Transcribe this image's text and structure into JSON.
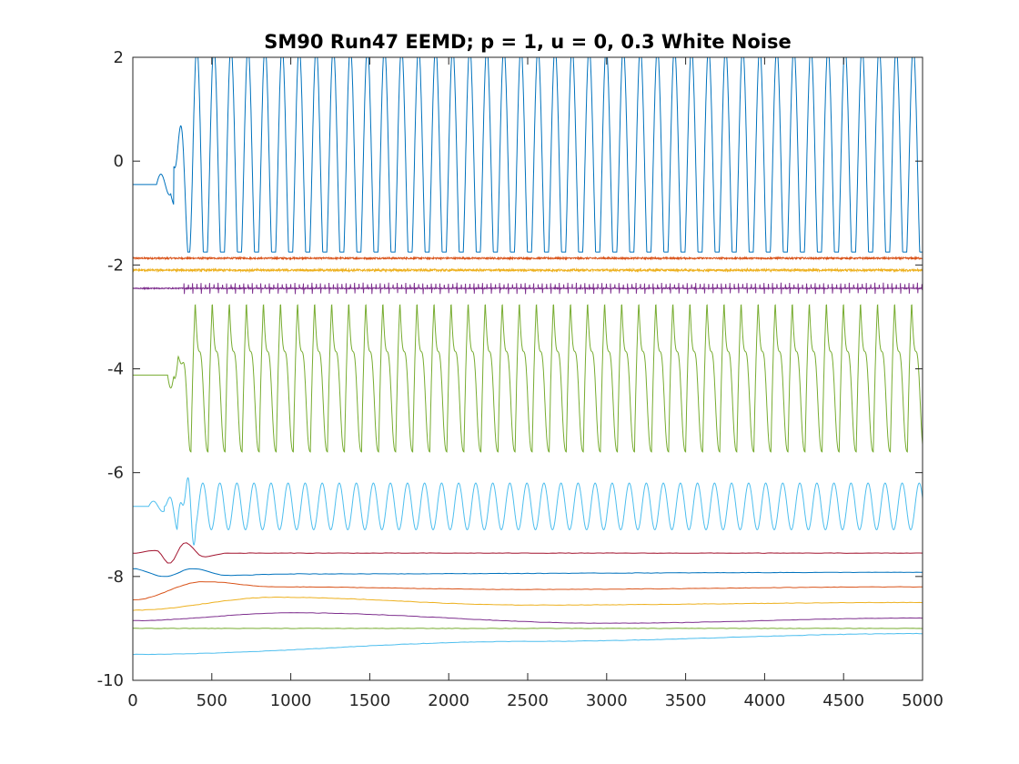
{
  "chart_data": {
    "type": "line",
    "title": "SM90 Run47 EEMD; p = 1, u = 0, 0.3 White Noise",
    "xlabel": "",
    "ylabel": "",
    "xlim": [
      0,
      5000
    ],
    "ylim": [
      -10,
      2
    ],
    "x_ticks": [
      0,
      500,
      1000,
      1500,
      2000,
      2500,
      3000,
      3500,
      4000,
      4500,
      5000
    ],
    "y_ticks": [
      -10,
      -8,
      -6,
      -4,
      -2,
      0,
      2
    ],
    "grid": false,
    "legend": "none",
    "series": [
      {
        "kind": "clipped_oscillation",
        "color": "#0072BD",
        "offset": -0.45,
        "pre_amp": 0.2,
        "amp": 2.3,
        "period": 108,
        "onset": 260,
        "clip_top": 2.0,
        "clip_bottom": -1.75
      },
      {
        "kind": "noise",
        "color": "#D95319",
        "offset": -1.87,
        "amp": 0.03
      },
      {
        "kind": "noise",
        "color": "#EDB120",
        "offset": -2.1,
        "amp": 0.04
      },
      {
        "kind": "spiky",
        "color": "#7E2F8E",
        "offset": -2.45,
        "amp": 0.1,
        "period": 54
      },
      {
        "kind": "sawtooth_oscillation",
        "color": "#77AC30",
        "offset": -4.12,
        "amp": 1.45,
        "period": 108,
        "onset": 260
      },
      {
        "kind": "oscillation",
        "color": "#4DBEEE",
        "offset": -6.65,
        "amp": 0.45,
        "period": 108,
        "onset": 200
      },
      {
        "kind": "slow",
        "color": "#A2142F",
        "offset": -7.55,
        "points": [
          [
            0,
            -7.55
          ],
          [
            150,
            -7.5
          ],
          [
            230,
            -7.75
          ],
          [
            330,
            -7.35
          ],
          [
            450,
            -7.62
          ],
          [
            600,
            -7.55
          ],
          [
            5000,
            -7.55
          ]
        ]
      },
      {
        "kind": "slow",
        "color": "#0072BD",
        "offset": -7.95,
        "points": [
          [
            0,
            -7.85
          ],
          [
            200,
            -8.0
          ],
          [
            380,
            -7.85
          ],
          [
            600,
            -7.98
          ],
          [
            1000,
            -7.95
          ],
          [
            5000,
            -7.92
          ]
        ]
      },
      {
        "kind": "slow",
        "color": "#D95319",
        "offset": -8.25,
        "points": [
          [
            0,
            -8.45
          ],
          [
            450,
            -8.1
          ],
          [
            900,
            -8.2
          ],
          [
            2500,
            -8.25
          ],
          [
            5000,
            -8.2
          ]
        ]
      },
      {
        "kind": "slow",
        "color": "#EDB120",
        "offset": -8.5,
        "points": [
          [
            0,
            -8.65
          ],
          [
            900,
            -8.4
          ],
          [
            2500,
            -8.55
          ],
          [
            5000,
            -8.5
          ]
        ]
      },
      {
        "kind": "slow",
        "color": "#7E2F8E",
        "offset": -8.8,
        "points": [
          [
            0,
            -8.85
          ],
          [
            1000,
            -8.7
          ],
          [
            3000,
            -8.9
          ],
          [
            5000,
            -8.8
          ]
        ]
      },
      {
        "kind": "slow",
        "color": "#77AC30",
        "offset": -9.0,
        "points": [
          [
            0,
            -9.0
          ],
          [
            5000,
            -9.0
          ]
        ]
      },
      {
        "kind": "slow",
        "color": "#4DBEEE",
        "offset": -9.3,
        "points": [
          [
            0,
            -9.5
          ],
          [
            2500,
            -9.25
          ],
          [
            5000,
            -9.1
          ]
        ]
      }
    ]
  }
}
